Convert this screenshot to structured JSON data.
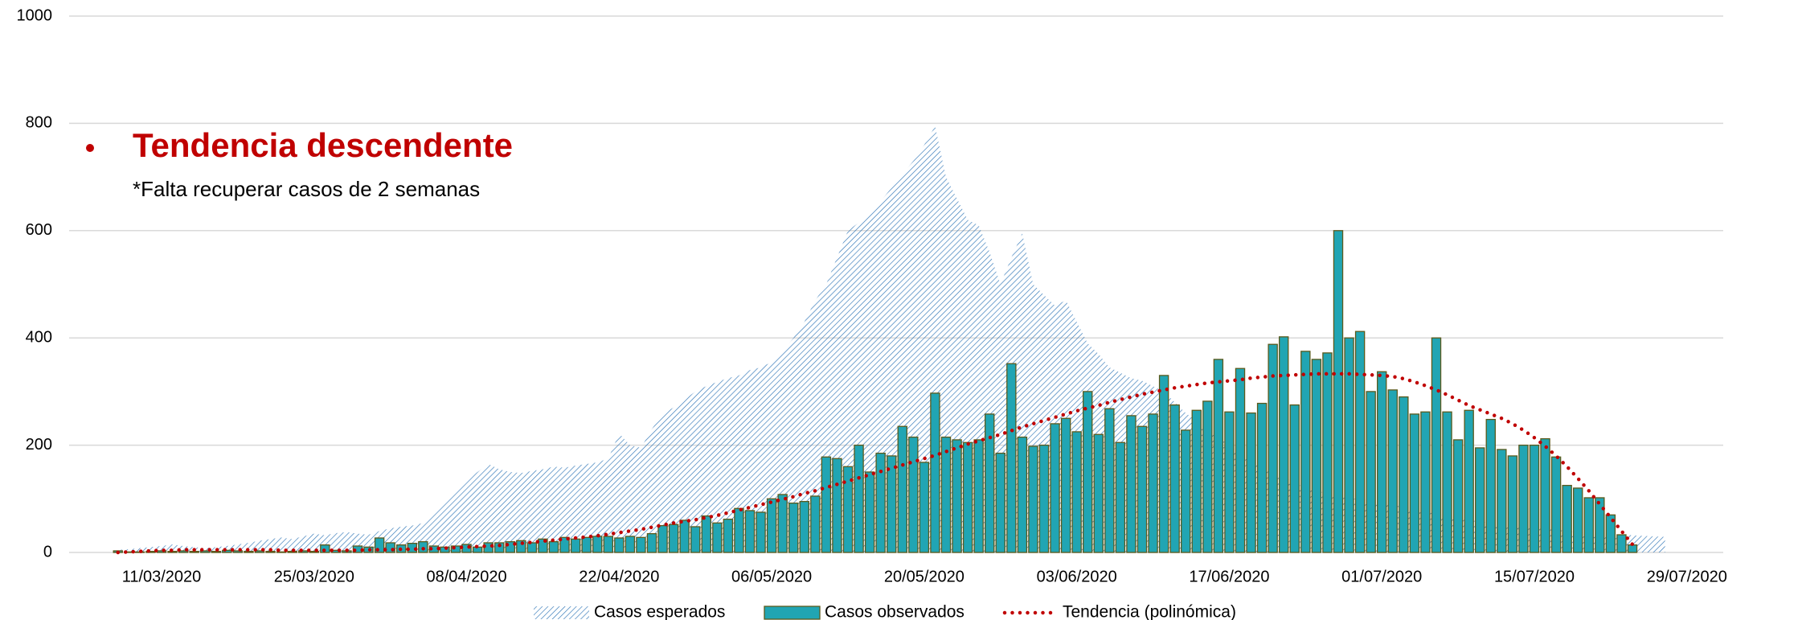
{
  "chart_data": {
    "type": "bar",
    "annotations": [
      "Tendencia descendente",
      "*Falta recuperar casos de 2 semanas"
    ],
    "x": [
      "07/03/2020",
      "08/03/2020",
      "09/03/2020",
      "10/03/2020",
      "11/03/2020",
      "12/03/2020",
      "13/03/2020",
      "14/03/2020",
      "15/03/2020",
      "16/03/2020",
      "17/03/2020",
      "18/03/2020",
      "19/03/2020",
      "20/03/2020",
      "21/03/2020",
      "22/03/2020",
      "23/03/2020",
      "24/03/2020",
      "25/03/2020",
      "26/03/2020",
      "27/03/2020",
      "28/03/2020",
      "29/03/2020",
      "30/03/2020",
      "31/03/2020",
      "01/04/2020",
      "02/04/2020",
      "03/04/2020",
      "04/04/2020",
      "05/04/2020",
      "06/04/2020",
      "07/04/2020",
      "08/04/2020",
      "09/04/2020",
      "10/04/2020",
      "11/04/2020",
      "12/04/2020",
      "13/04/2020",
      "14/04/2020",
      "15/04/2020",
      "16/04/2020",
      "17/04/2020",
      "18/04/2020",
      "19/04/2020",
      "20/04/2020",
      "21/04/2020",
      "22/04/2020",
      "23/04/2020",
      "24/04/2020",
      "25/04/2020",
      "26/04/2020",
      "27/04/2020",
      "28/04/2020",
      "29/04/2020",
      "30/04/2020",
      "01/05/2020",
      "02/05/2020",
      "03/05/2020",
      "04/05/2020",
      "05/05/2020",
      "06/05/2020",
      "07/05/2020",
      "08/05/2020",
      "09/05/2020",
      "10/05/2020",
      "11/05/2020",
      "12/05/2020",
      "13/05/2020",
      "14/05/2020",
      "15/05/2020",
      "16/05/2020",
      "17/05/2020",
      "18/05/2020",
      "19/05/2020",
      "20/05/2020",
      "21/05/2020",
      "22/05/2020",
      "23/05/2020",
      "24/05/2020",
      "25/05/2020",
      "26/05/2020",
      "27/05/2020",
      "28/05/2020",
      "29/05/2020",
      "30/05/2020",
      "31/05/2020",
      "01/06/2020",
      "02/06/2020",
      "03/06/2020",
      "04/06/2020",
      "05/06/2020",
      "06/06/2020",
      "07/06/2020",
      "08/06/2020",
      "09/06/2020",
      "10/06/2020",
      "11/06/2020",
      "12/06/2020",
      "13/06/2020",
      "14/06/2020",
      "15/06/2020",
      "16/06/2020",
      "17/06/2020",
      "18/06/2020",
      "19/06/2020",
      "20/06/2020",
      "21/06/2020",
      "22/06/2020",
      "23/06/2020",
      "24/06/2020",
      "25/06/2020",
      "26/06/2020",
      "27/06/2020",
      "28/06/2020",
      "29/06/2020",
      "30/06/2020",
      "01/07/2020",
      "02/07/2020",
      "03/07/2020",
      "04/07/2020",
      "05/07/2020",
      "06/07/2020",
      "07/07/2020",
      "08/07/2020",
      "09/07/2020",
      "10/07/2020",
      "11/07/2020",
      "12/07/2020",
      "13/07/2020",
      "14/07/2020",
      "15/07/2020",
      "16/07/2020",
      "17/07/2020",
      "18/07/2020",
      "19/07/2020",
      "20/07/2020",
      "21/07/2020",
      "22/07/2020",
      "23/07/2020",
      "24/07/2020",
      "25/07/2020",
      "26/07/2020",
      "27/07/2020"
    ],
    "series": [
      {
        "name": "Casos esperados",
        "type": "area",
        "color": "#2e75b6",
        "values": [
          5,
          6,
          8,
          10,
          12,
          15,
          12,
          10,
          8,
          10,
          12,
          15,
          18,
          22,
          25,
          28,
          25,
          30,
          35,
          32,
          36,
          38,
          35,
          33,
          40,
          45,
          48,
          50,
          55,
          75,
          95,
          115,
          135,
          150,
          165,
          155,
          150,
          148,
          152,
          155,
          160,
          158,
          162,
          165,
          168,
          175,
          222,
          200,
          195,
          230,
          260,
          270,
          285,
          300,
          310,
          318,
          325,
          330,
          340,
          345,
          355,
          375,
          400,
          430,
          470,
          500,
          550,
          600,
          615,
          630,
          655,
          680,
          705,
          730,
          760,
          795,
          700,
          660,
          620,
          610,
          560,
          500,
          550,
          595,
          500,
          480,
          460,
          470,
          430,
          390,
          370,
          345,
          335,
          325,
          320,
          310,
          300,
          280,
          260,
          245,
          230,
          215,
          200,
          185,
          170,
          160,
          150,
          140,
          130,
          120,
          115,
          110,
          105,
          100,
          100,
          95,
          92,
          88,
          85,
          80,
          76,
          72,
          68,
          65,
          60,
          58,
          55,
          52,
          50,
          48,
          46,
          44,
          42,
          40,
          38,
          36,
          35,
          34,
          33,
          32,
          31,
          30,
          29
        ]
      },
      {
        "name": "Casos observados",
        "type": "bar",
        "color": "#21a5b3",
        "edge": "#5c5a1c",
        "values": [
          3,
          1,
          1,
          2,
          3,
          2,
          3,
          2,
          3,
          2,
          4,
          3,
          2,
          3,
          2,
          1,
          2,
          3,
          2,
          14,
          4,
          3,
          12,
          10,
          27,
          18,
          14,
          17,
          20,
          12,
          10,
          12,
          15,
          10,
          18,
          18,
          20,
          22,
          18,
          25,
          20,
          28,
          25,
          28,
          30,
          30,
          27,
          30,
          28,
          35,
          50,
          52,
          60,
          48,
          68,
          55,
          62,
          82,
          78,
          75,
          100,
          108,
          92,
          95,
          105,
          178,
          175,
          160,
          200,
          150,
          185,
          180,
          235,
          215,
          168,
          297,
          215,
          210,
          205,
          210,
          258,
          185,
          352,
          215,
          198,
          200,
          240,
          250,
          225,
          300,
          220,
          268,
          205,
          255,
          235,
          258,
          330,
          275,
          228,
          265,
          282,
          360,
          262,
          343,
          260,
          278,
          388,
          402,
          275,
          375,
          360,
          372,
          600,
          400,
          412,
          300,
          337,
          303,
          290,
          258,
          262,
          400,
          262,
          210,
          265,
          195,
          248,
          192,
          180,
          200,
          200,
          212,
          178,
          125,
          120,
          102,
          102,
          70,
          33,
          14,
          null,
          null,
          null
        ]
      },
      {
        "name": "Tendencia (polinómica)",
        "type": "line",
        "color": "#c00000",
        "values": [
          0,
          1,
          2,
          3,
          4,
          4,
          5,
          5,
          5,
          5,
          5,
          5,
          5,
          5,
          5,
          4,
          4,
          4,
          4,
          4,
          4,
          4,
          4,
          5,
          5,
          5,
          6,
          6,
          7,
          7,
          8,
          9,
          10,
          11,
          12,
          13,
          15,
          17,
          19,
          21,
          23,
          25,
          27,
          29,
          31,
          34,
          37,
          40,
          43,
          47,
          51,
          55,
          58,
          61,
          65,
          69,
          74,
          79,
          84,
          89,
          94,
          99,
          104,
          110,
          115,
          121,
          127,
          133,
          139,
          145,
          151,
          157,
          163,
          169,
          175,
          181,
          188,
          195,
          202,
          208,
          214,
          220,
          227,
          234,
          240,
          246,
          252,
          258,
          264,
          269,
          274,
          280,
          285,
          290,
          295,
          299,
          303,
          307,
          310,
          313,
          316,
          318,
          320,
          322,
          325,
          327,
          329,
          330,
          331,
          332,
          333,
          333,
          333,
          333,
          332,
          331,
          330,
          328,
          324,
          318,
          311,
          303,
          294,
          284,
          274,
          266,
          258,
          250,
          240,
          228,
          214,
          198,
          180,
          160,
          138,
          115,
          90,
          65,
          40,
          15,
          null,
          null,
          null
        ]
      }
    ],
    "xlim": [
      "02/03/2020",
      "02/08/2020"
    ],
    "xticks": [
      "11/03/2020",
      "25/03/2020",
      "08/04/2020",
      "22/04/2020",
      "06/05/2020",
      "20/05/2020",
      "03/06/2020",
      "17/06/2020",
      "01/07/2020",
      "15/07/2020",
      "29/07/2020"
    ],
    "ylim": [
      0,
      1000
    ],
    "yticks": [
      0,
      200,
      400,
      600,
      800,
      1000
    ],
    "grid": true
  }
}
